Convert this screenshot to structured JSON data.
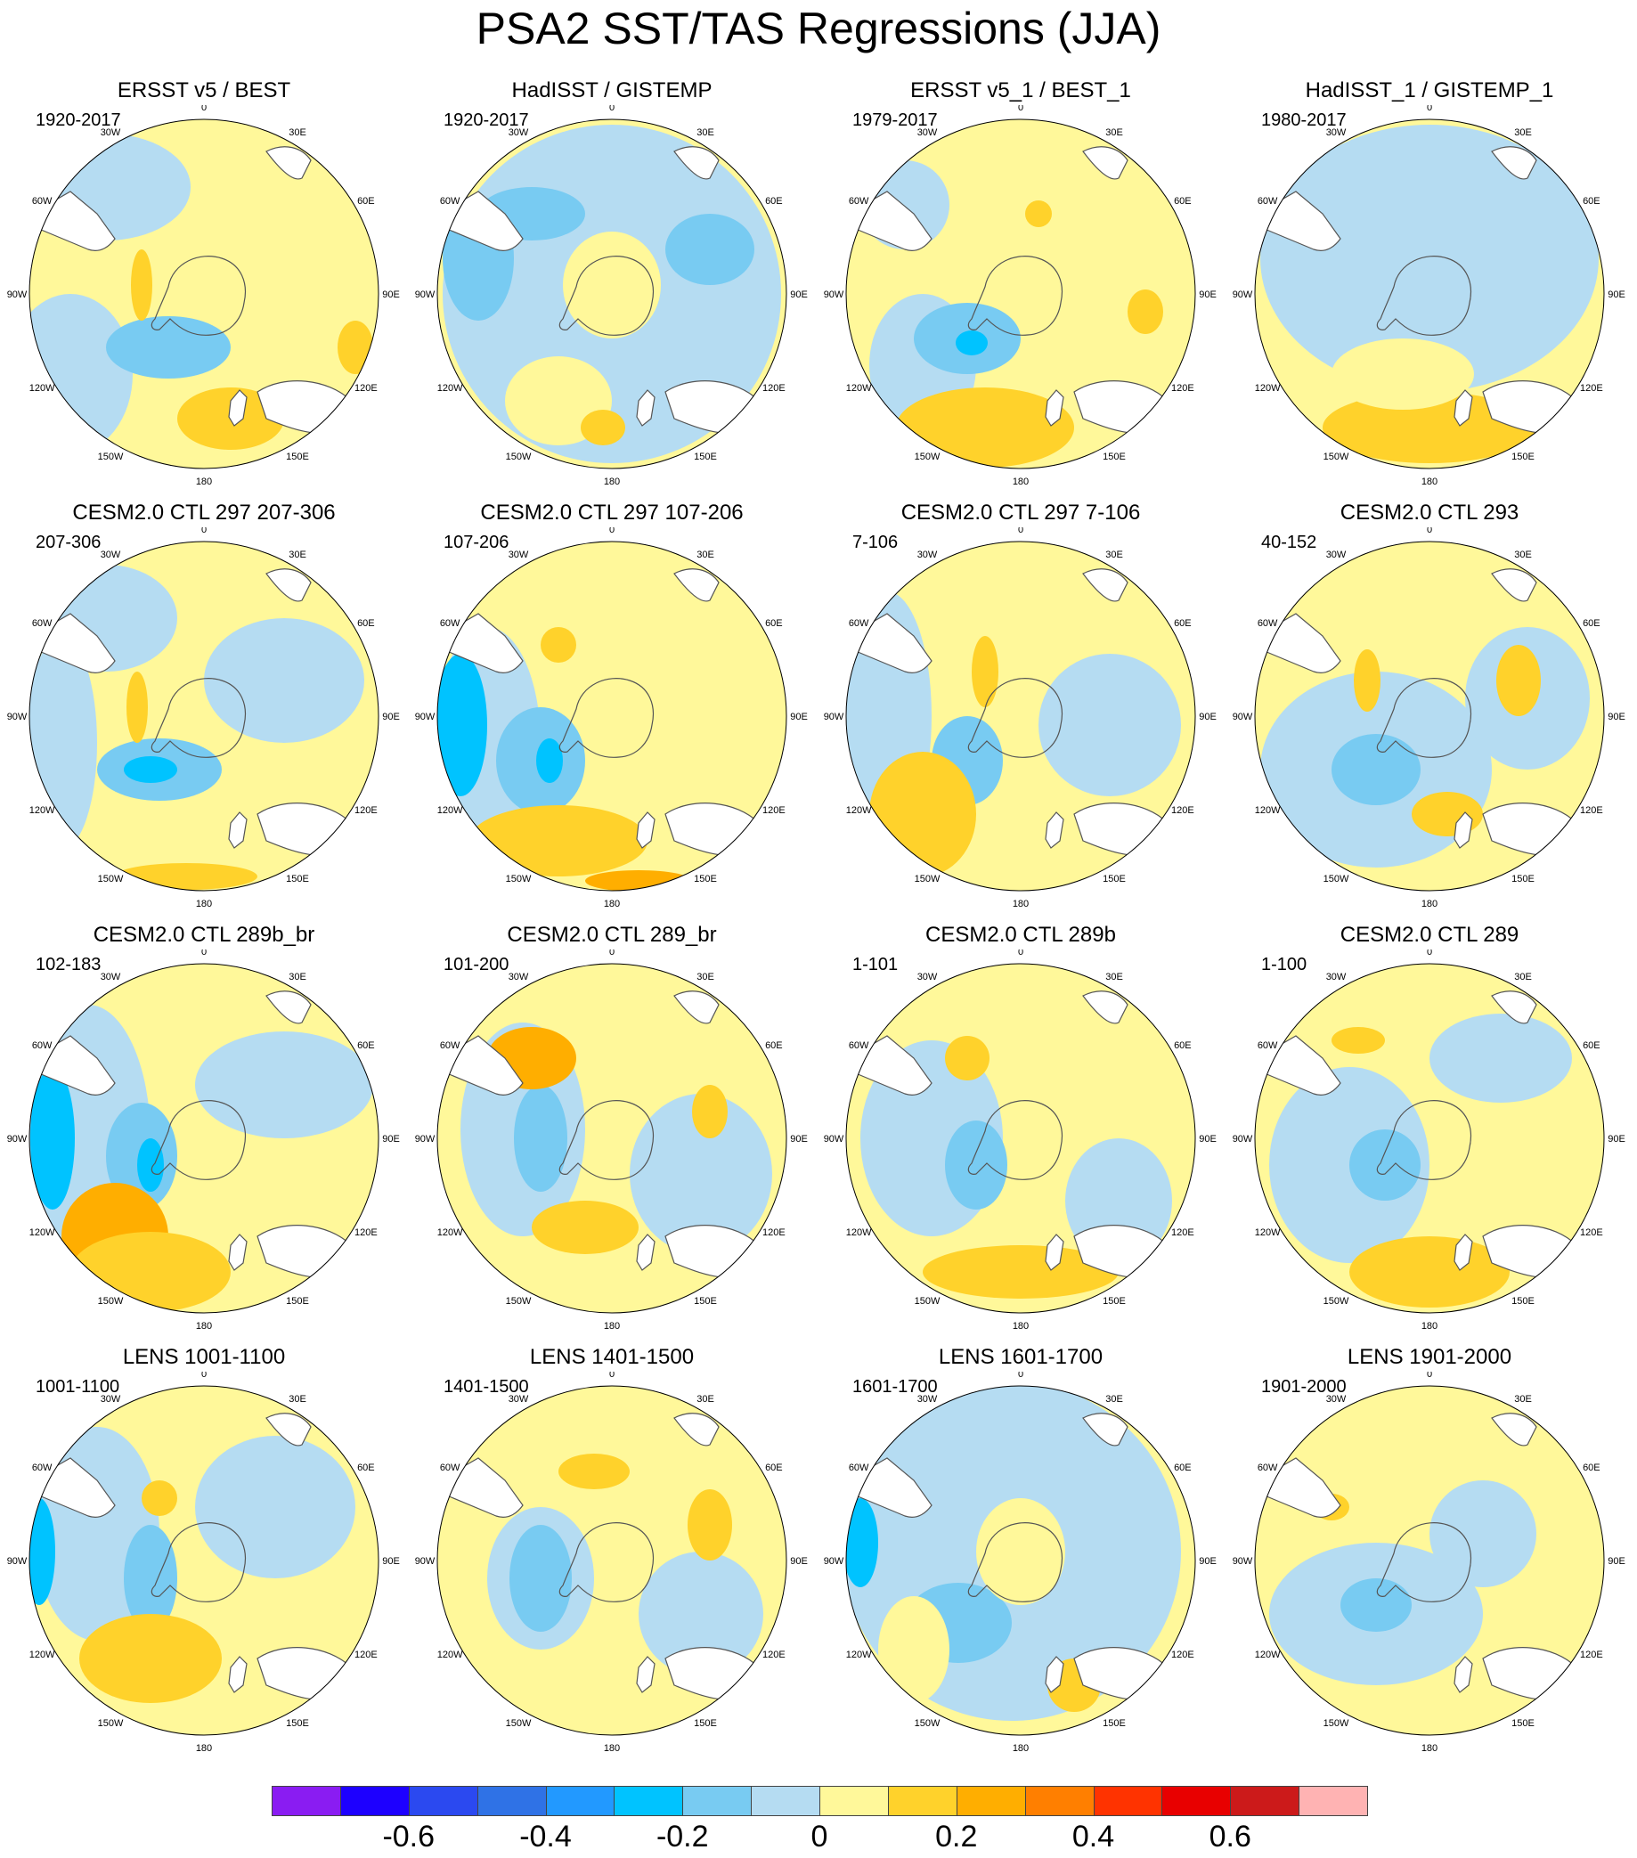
{
  "title": "PSA2 SST/TAS Regressions (JJA)",
  "lon_labels": [
    "0",
    "30E",
    "60E",
    "90E",
    "120E",
    "150E",
    "180",
    "150W",
    "120W",
    "90W",
    "60W",
    "30W"
  ],
  "panels": [
    {
      "title": "ERSST v5 / BEST",
      "period": "1920-2017"
    },
    {
      "title": "HadISST / GISTEMP",
      "period": "1920-2017"
    },
    {
      "title": "ERSST v5_1 / BEST_1",
      "period": "1979-2017"
    },
    {
      "title": "HadISST_1 / GISTEMP_1",
      "period": "1980-2017"
    },
    {
      "title": "CESM2.0 CTL 297 207-306",
      "period": "207-306"
    },
    {
      "title": "CESM2.0 CTL 297 107-206",
      "period": "107-206"
    },
    {
      "title": "CESM2.0 CTL 297 7-106",
      "period": "7-106"
    },
    {
      "title": "CESM2.0 CTL 293",
      "period": "40-152"
    },
    {
      "title": "CESM2.0 CTL 289b_br",
      "period": "102-183"
    },
    {
      "title": "CESM2.0 CTL 289_br",
      "period": "101-200"
    },
    {
      "title": "CESM2.0 CTL 289b",
      "period": "1-101"
    },
    {
      "title": "CESM2.0 CTL 289",
      "period": "1-100"
    },
    {
      "title": "LENS 1001-1100",
      "period": "1001-1100"
    },
    {
      "title": "LENS 1401-1500",
      "period": "1401-1500"
    },
    {
      "title": "LENS 1601-1700",
      "period": "1601-1700"
    },
    {
      "title": "LENS 1901-2000",
      "period": "1901-2000"
    }
  ],
  "colorbar": {
    "colors": [
      "#8a1cf2",
      "#1d00ff",
      "#2b49f0",
      "#2f72e6",
      "#2299ff",
      "#00c3ff",
      "#78cbf2",
      "#b5dcf2",
      "#fff89a",
      "#ffd22b",
      "#ffae00",
      "#ff7f00",
      "#ff3300",
      "#e80000",
      "#cc1a1a",
      "#ffb3b3"
    ],
    "labels": [
      "-0.6",
      "-0.4",
      "-0.2",
      "0",
      "0.2",
      "0.4",
      "0.6"
    ]
  },
  "fill_colors": {
    "weak_negative": "#b5dcf2",
    "moderate_negative": "#78cbf2",
    "strong_negative": "#00c3ff",
    "weak_positive": "#fff89a",
    "moderate_positive": "#ffd22b",
    "strong_positive": "#ffae00",
    "land": "#ffffff",
    "coastline": "#555555"
  }
}
